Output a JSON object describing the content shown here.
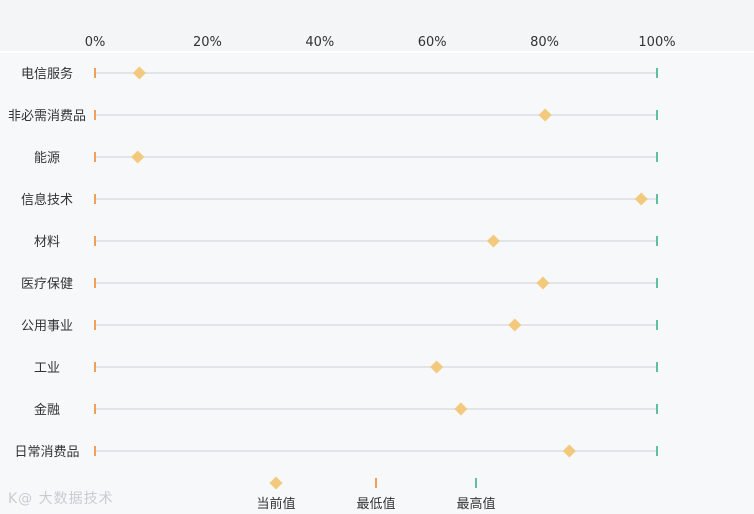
{
  "chart_data": {
    "type": "dot-range",
    "x_ticks": [
      "0%",
      "20%",
      "40%",
      "60%",
      "80%",
      "100%"
    ],
    "xlim": [
      0,
      100
    ],
    "categories": [
      "电信服务",
      "非必需消费品",
      "能源",
      "信息技术",
      "材料",
      "医疗保健",
      "公用事业",
      "工业",
      "金融",
      "日常消费品"
    ],
    "series": [
      {
        "name": "当前值",
        "marker": "diamond",
        "color": "#f2c97d",
        "values": [
          7.9,
          80.1,
          7.6,
          97.2,
          70.9,
          79.7,
          74.7,
          60.8,
          65.1,
          84.4
        ]
      },
      {
        "name": "最低值",
        "marker": "tick",
        "color": "#f0a05a",
        "values": [
          0,
          0,
          0,
          0,
          0,
          0,
          0,
          0,
          0,
          0
        ]
      },
      {
        "name": "最高值",
        "marker": "tick",
        "color": "#5fbf9f",
        "values": [
          100,
          100,
          100,
          100,
          100,
          100,
          100,
          100,
          100,
          100
        ]
      }
    ],
    "legend_position": "bottom",
    "grid": false
  },
  "watermark": "K@ 大数据技术"
}
